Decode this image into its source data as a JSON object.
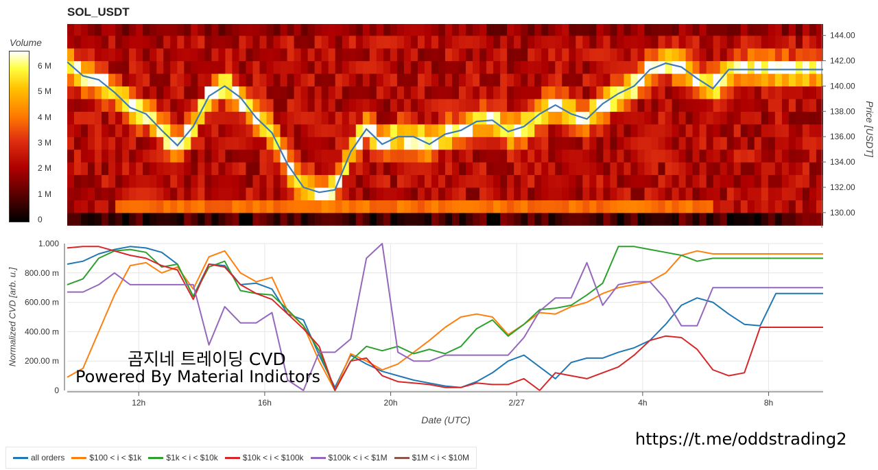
{
  "chart_title": "SOL_USDT",
  "colorbar": {
    "title": "Volume",
    "ticks": [
      "6 M",
      "5 M",
      "4 M",
      "3 M",
      "2 M",
      "1 M",
      "0"
    ]
  },
  "price_axis": {
    "title": "Price [USDT]",
    "ticks": [
      "144.00",
      "142.00",
      "140.00",
      "138.00",
      "136.00",
      "134.00",
      "132.00",
      "130.00"
    ]
  },
  "cvd_axis": {
    "title": "Normalized CVD [arb. u.]",
    "ticks": [
      "1.000",
      "800.00 m",
      "600.00 m",
      "400.00 m",
      "200.00 m",
      "0"
    ]
  },
  "x_axis": {
    "title": "Date (UTC)",
    "ticks": [
      "12h",
      "16h",
      "20h",
      "2/27",
      "4h",
      "8h"
    ]
  },
  "watermark": {
    "line1": "곰지네 트레이딩 CVD",
    "line2": "Powered By Material Indictors"
  },
  "link": "https://t.me/oddstrading2",
  "legend": [
    {
      "label": "all orders",
      "color": "#1f77b4"
    },
    {
      "label": "$100 < i < $1k",
      "color": "#ff7f0e"
    },
    {
      "label": "$1k < i < $10k",
      "color": "#2ca02c"
    },
    {
      "label": "$10k < i < $100k",
      "color": "#d62728"
    },
    {
      "label": "$100k < i < $1M",
      "color": "#9467bd"
    },
    {
      "label": "$1M < i < $10M",
      "color": "#8c564b"
    }
  ],
  "chart_data": [
    {
      "type": "heatmap",
      "title": "SOL_USDT",
      "ylabel": "Price [USDT]",
      "ylim": [
        128.8,
        144.9
      ],
      "colorbar_label": "Volume",
      "colorbar_range": [
        0,
        6.5
      ],
      "price_series": {
        "x_hours": [
          0,
          0.5,
          1,
          1.5,
          2,
          2.5,
          3,
          3.5,
          4,
          4.5,
          5,
          5.5,
          6,
          6.5,
          7,
          7.5,
          8,
          8.5,
          9,
          9.5,
          10,
          10.5,
          11,
          11.5,
          12,
          12.5,
          13,
          13.5,
          14,
          14.5,
          15,
          15.5,
          16,
          16.5,
          17,
          17.5,
          18,
          18.5,
          19,
          19.5,
          20,
          20.5,
          21,
          21.5,
          22,
          22.5,
          23,
          23.5,
          24
        ],
        "values": [
          141.9,
          140.8,
          140.5,
          139.5,
          138.3,
          137.8,
          136.5,
          135.3,
          136.8,
          139.2,
          140.0,
          139.1,
          137.5,
          136.3,
          133.8,
          132.0,
          131.6,
          131.8,
          134.8,
          136.6,
          135.4,
          136.0,
          136.0,
          135.4,
          136.2,
          136.5,
          137.2,
          137.3,
          136.4,
          136.8,
          137.8,
          138.5,
          137.8,
          137.4,
          138.6,
          139.4,
          140.0,
          141.3,
          141.8,
          141.5,
          140.6,
          139.8,
          141.3,
          141.3,
          141.3,
          141.3,
          141.3,
          141.3,
          141.3
        ]
      }
    },
    {
      "type": "line",
      "xlabel": "Date (UTC)",
      "ylabel": "Normalized CVD [arb. u.]",
      "ylim": [
        0,
        1
      ],
      "x_hours": [
        0,
        0.5,
        1,
        1.5,
        2,
        2.5,
        3,
        3.5,
        4,
        4.5,
        5,
        5.5,
        6,
        6.5,
        7,
        7.5,
        8,
        8.5,
        9,
        9.5,
        10,
        10.5,
        11,
        11.5,
        12,
        12.5,
        13,
        13.5,
        14,
        14.5,
        15,
        15.5,
        16,
        16.5,
        17,
        17.5,
        18,
        18.5,
        19,
        19.5,
        20,
        20.5,
        21,
        21.5,
        22,
        22.5,
        23,
        23.5,
        24
      ],
      "series": [
        {
          "name": "all orders",
          "values": [
            0.86,
            0.88,
            0.93,
            0.96,
            0.98,
            0.97,
            0.94,
            0.86,
            0.64,
            0.86,
            0.85,
            0.72,
            0.73,
            0.69,
            0.52,
            0.48,
            0.24,
            0.02,
            0.24,
            0.18,
            0.13,
            0.1,
            0.07,
            0.05,
            0.03,
            0.02,
            0.06,
            0.12,
            0.2,
            0.24,
            0.16,
            0.08,
            0.19,
            0.22,
            0.22,
            0.26,
            0.29,
            0.34,
            0.45,
            0.58,
            0.63,
            0.6,
            0.52,
            0.45,
            0.44,
            0.66,
            0.66,
            0.66,
            0.66
          ]
        },
        {
          "name": "$100 < i < $1k",
          "values": [
            0.09,
            0.15,
            0.4,
            0.65,
            0.85,
            0.87,
            0.8,
            0.84,
            0.69,
            0.91,
            0.95,
            0.8,
            0.74,
            0.77,
            0.54,
            0.44,
            0.2,
            0.0,
            0.25,
            0.2,
            0.14,
            0.18,
            0.26,
            0.34,
            0.43,
            0.5,
            0.52,
            0.5,
            0.38,
            0.45,
            0.53,
            0.52,
            0.57,
            0.6,
            0.66,
            0.7,
            0.72,
            0.74,
            0.8,
            0.92,
            0.95,
            0.93,
            0.93,
            0.93,
            0.93,
            0.93,
            0.93,
            0.93,
            0.93
          ]
        },
        {
          "name": "$1k < i < $10k",
          "values": [
            0.72,
            0.76,
            0.9,
            0.95,
            0.96,
            0.94,
            0.84,
            0.86,
            0.64,
            0.84,
            0.88,
            0.68,
            0.66,
            0.65,
            0.55,
            0.44,
            0.27,
            0.0,
            0.2,
            0.3,
            0.27,
            0.3,
            0.25,
            0.28,
            0.25,
            0.3,
            0.42,
            0.48,
            0.37,
            0.45,
            0.55,
            0.56,
            0.58,
            0.65,
            0.73,
            0.98,
            0.98,
            0.96,
            0.94,
            0.92,
            0.88,
            0.9,
            0.9,
            0.9,
            0.9,
            0.9,
            0.9,
            0.9,
            0.9
          ]
        },
        {
          "name": "$10k < i < $100k",
          "values": [
            0.97,
            0.98,
            0.98,
            0.95,
            0.92,
            0.9,
            0.85,
            0.82,
            0.62,
            0.86,
            0.84,
            0.72,
            0.66,
            0.62,
            0.52,
            0.42,
            0.3,
            0.0,
            0.2,
            0.22,
            0.1,
            0.06,
            0.05,
            0.04,
            0.02,
            0.02,
            0.05,
            0.04,
            0.04,
            0.08,
            0.0,
            0.12,
            0.1,
            0.08,
            0.12,
            0.16,
            0.24,
            0.34,
            0.37,
            0.36,
            0.28,
            0.14,
            0.1,
            0.12,
            0.43,
            0.43,
            0.43,
            0.43,
            0.43
          ]
        },
        {
          "name": "$100k < i < $1M",
          "values": [
            0.67,
            0.67,
            0.72,
            0.8,
            0.72,
            0.72,
            0.72,
            0.72,
            0.72,
            0.31,
            0.57,
            0.46,
            0.46,
            0.53,
            0.07,
            0.0,
            0.26,
            0.26,
            0.35,
            0.9,
            1.0,
            0.26,
            0.2,
            0.2,
            0.24,
            0.24,
            0.24,
            0.24,
            0.24,
            0.36,
            0.54,
            0.63,
            0.63,
            0.87,
            0.58,
            0.72,
            0.74,
            0.74,
            0.62,
            0.44,
            0.44,
            0.7,
            0.7,
            0.7,
            0.7,
            0.7,
            0.7,
            0.7,
            0.7
          ]
        },
        {
          "name": "$1M < i < $10M",
          "values": []
        }
      ]
    }
  ]
}
